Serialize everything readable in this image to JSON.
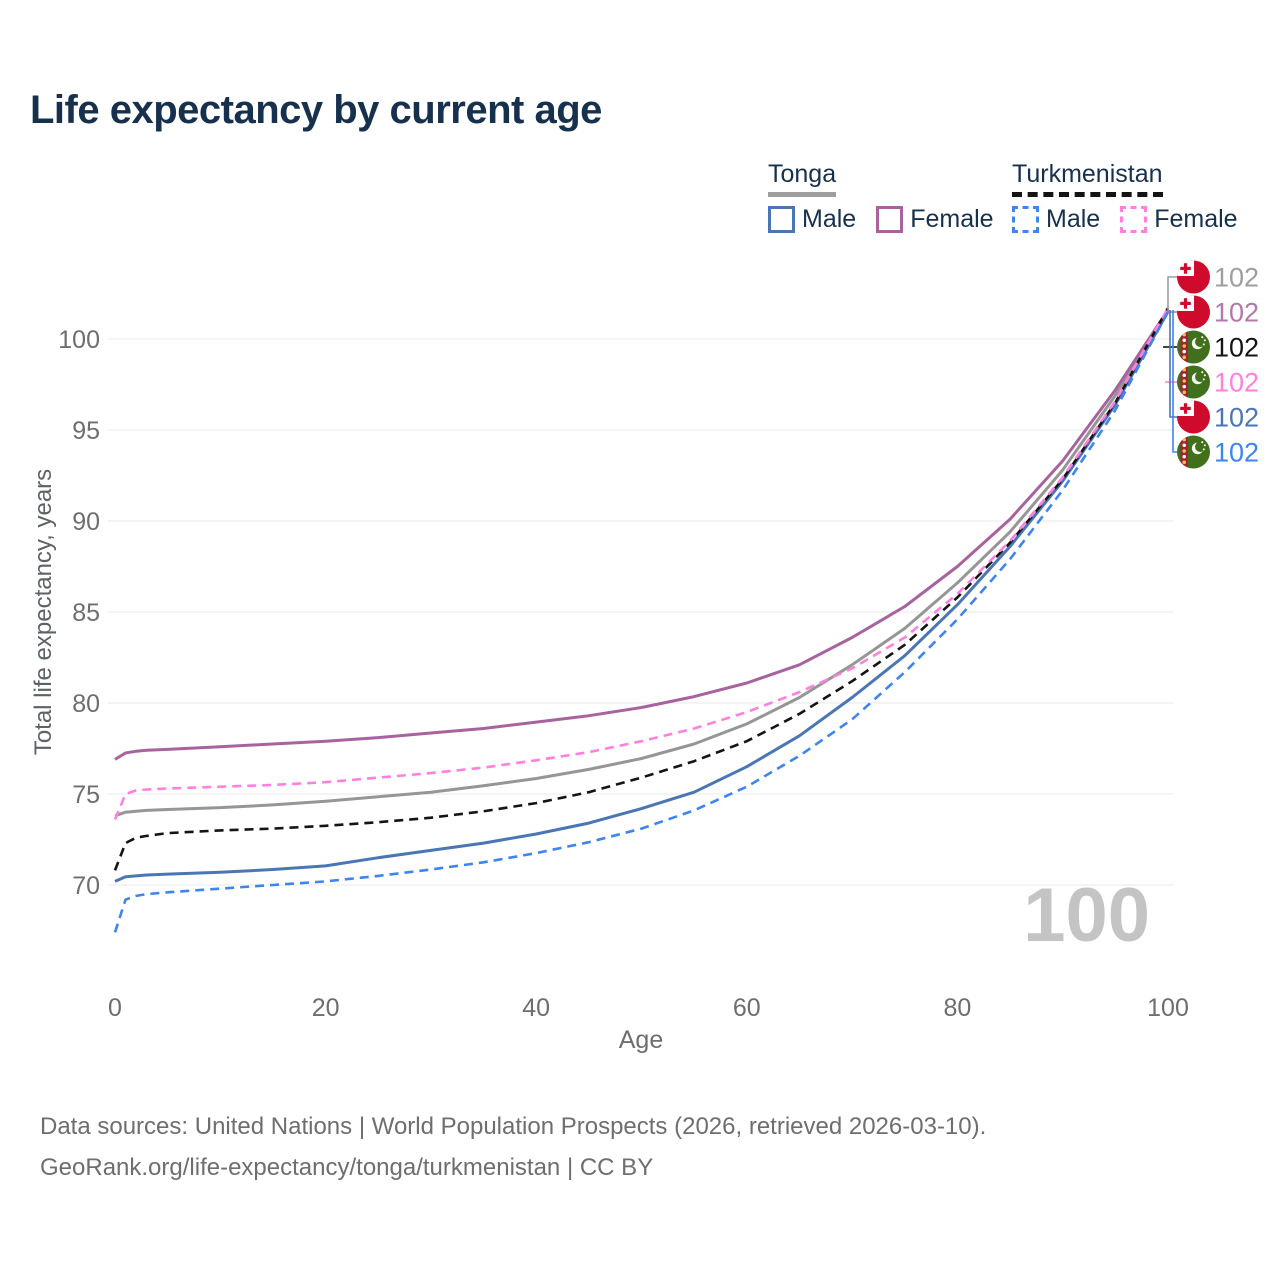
{
  "title": "Life expectancy by current age",
  "legend": {
    "groups": [
      {
        "name": "Tonga",
        "line_color": "#9e9e9e",
        "line_style": "solid",
        "items": [
          {
            "label": "Male",
            "swatch_color": "#4a76b4",
            "dashed": false
          },
          {
            "label": "Female",
            "swatch_color": "#a8639e",
            "dashed": false
          }
        ]
      },
      {
        "name": "Turkmenistan",
        "line_color": "#141414",
        "line_style": "dashed",
        "items": [
          {
            "label": "Male",
            "swatch_color": "#3e85f0",
            "dashed": true
          },
          {
            "label": "Female",
            "swatch_color": "#ff80df",
            "dashed": true
          }
        ]
      }
    ]
  },
  "chart_data": {
    "type": "line",
    "title": "Life expectancy by current age",
    "xlabel": "Age",
    "ylabel": "Total life expectancy, years",
    "xlim": [
      0,
      100
    ],
    "ylim": [
      67,
      103
    ],
    "x_ticks": [
      0,
      20,
      40,
      60,
      80,
      100
    ],
    "y_ticks": [
      70,
      75,
      80,
      85,
      90,
      95,
      100
    ],
    "grid": "horizontal-only",
    "legend_position": "top-right",
    "x": [
      0,
      1,
      2,
      3,
      5,
      10,
      15,
      20,
      25,
      30,
      35,
      40,
      45,
      50,
      55,
      60,
      65,
      70,
      75,
      80,
      85,
      90,
      95,
      100
    ],
    "series": [
      {
        "name": "Tonga (both sexes)",
        "country": "Tonga",
        "sex": "all",
        "color": "#969696",
        "dashed": false,
        "values": [
          73.8,
          74.0,
          74.05,
          74.1,
          74.15,
          74.25,
          74.4,
          74.6,
          74.85,
          75.1,
          75.45,
          75.85,
          76.35,
          76.95,
          77.75,
          78.85,
          80.3,
          82.1,
          84.1,
          86.6,
          89.4,
          92.8,
          96.9,
          101.6
        ]
      },
      {
        "name": "Tonga Female",
        "country": "Tonga",
        "sex": "female",
        "color": "#a8639e",
        "dashed": false,
        "values": [
          76.9,
          77.25,
          77.35,
          77.4,
          77.45,
          77.6,
          77.75,
          77.9,
          78.1,
          78.35,
          78.6,
          78.95,
          79.3,
          79.75,
          80.35,
          81.1,
          82.1,
          83.6,
          85.3,
          87.5,
          90.1,
          93.3,
          97.2,
          101.6
        ]
      },
      {
        "name": "Tonga Male",
        "country": "Tonga",
        "sex": "male",
        "color": "#4a76b4",
        "dashed": false,
        "values": [
          70.2,
          70.45,
          70.5,
          70.55,
          70.6,
          70.7,
          70.85,
          71.05,
          71.5,
          71.9,
          72.3,
          72.8,
          73.4,
          74.2,
          75.1,
          76.5,
          78.2,
          80.3,
          82.6,
          85.4,
          88.6,
          92.2,
          96.4,
          101.5
        ]
      },
      {
        "name": "Turkmenistan (both sexes)",
        "country": "Turkmenistan",
        "sex": "all",
        "color": "#141414",
        "dashed": true,
        "values": [
          70.8,
          72.3,
          72.6,
          72.7,
          72.85,
          73.0,
          73.1,
          73.25,
          73.45,
          73.7,
          74.05,
          74.5,
          75.1,
          75.9,
          76.8,
          77.9,
          79.4,
          81.2,
          83.2,
          85.8,
          88.8,
          92.3,
          96.5,
          101.7
        ]
      },
      {
        "name": "Turkmenistan Female",
        "country": "Turkmenistan",
        "sex": "female",
        "color": "#ff80df",
        "dashed": true,
        "values": [
          73.6,
          75.0,
          75.2,
          75.25,
          75.3,
          75.4,
          75.5,
          75.65,
          75.9,
          76.15,
          76.45,
          76.85,
          77.3,
          77.9,
          78.6,
          79.5,
          80.6,
          81.9,
          83.6,
          86.0,
          88.9,
          92.4,
          96.6,
          101.7
        ]
      },
      {
        "name": "Turkmenistan Male",
        "country": "Turkmenistan",
        "sex": "male",
        "color": "#3e85f0",
        "dashed": true,
        "values": [
          67.4,
          69.2,
          69.4,
          69.5,
          69.6,
          69.8,
          70.0,
          70.2,
          70.5,
          70.85,
          71.25,
          71.75,
          72.35,
          73.1,
          74.1,
          75.4,
          77.1,
          79.1,
          81.7,
          84.6,
          87.9,
          91.7,
          96.1,
          101.5
        ]
      }
    ]
  },
  "end_labels": [
    {
      "flag": "tonga-flag-icon",
      "value": "102",
      "color": "#9e9e9e"
    },
    {
      "flag": "tonga-flag-icon",
      "value": "102",
      "color": "#b277ab"
    },
    {
      "flag": "turkmenistan-flag-icon",
      "value": "102",
      "color": "#141414"
    },
    {
      "flag": "turkmenistan-flag-icon",
      "value": "102",
      "color": "#ff80df"
    },
    {
      "flag": "tonga-flag-icon",
      "value": "102",
      "color": "#4a76b4"
    },
    {
      "flag": "turkmenistan-flag-icon",
      "value": "102",
      "color": "#3e85f0"
    }
  ],
  "watermark": "100",
  "footer": {
    "line1": "Data sources: United Nations | World Population Prospects (2026, retrieved 2026-03-10).",
    "line2": "GeoRank.org/life-expectancy/tonga/turkmenistan | CC BY"
  }
}
